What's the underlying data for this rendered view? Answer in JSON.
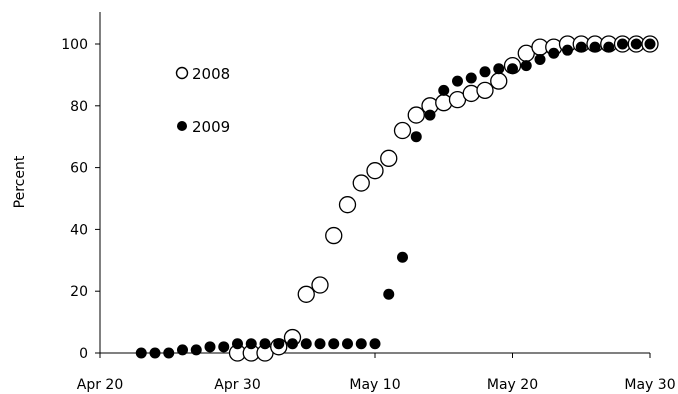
{
  "chart_data": {
    "type": "scatter",
    "title": "",
    "xlabel": "",
    "ylabel": "Percent",
    "x_ticks": [
      "Apr 20",
      "Apr 30",
      "May 10",
      "May 20",
      "May 30"
    ],
    "y_ticks": [
      "0",
      "20",
      "40",
      "60",
      "80",
      "100"
    ],
    "xlim": [
      "Apr 20",
      "May 30"
    ],
    "ylim": [
      0,
      100
    ],
    "grid": false,
    "legend_position": "top-left",
    "series": [
      {
        "name": "2008",
        "marker": "open-circle",
        "x": [
          "Apr 30",
          "May 1",
          "May 2",
          "May 3",
          "May 4",
          "May 5",
          "May 6",
          "May 7",
          "May 8",
          "May 9",
          "May 10",
          "May 11",
          "May 12",
          "May 13",
          "May 14",
          "May 15",
          "May 16",
          "May 17",
          "May 18",
          "May 19",
          "May 20",
          "May 21",
          "May 22",
          "May 23",
          "May 24",
          "May 25",
          "May 26",
          "May 27",
          "May 28",
          "May 29",
          "May 30"
        ],
        "y": [
          0,
          0,
          0,
          2,
          5,
          19,
          22,
          38,
          48,
          55,
          59,
          63,
          72,
          77,
          80,
          81,
          82,
          84,
          85,
          88,
          93,
          97,
          99,
          99,
          100,
          100,
          100,
          100,
          100,
          100,
          100
        ]
      },
      {
        "name": "2009",
        "marker": "filled-circle",
        "x": [
          "Apr 23",
          "Apr 24",
          "Apr 25",
          "Apr 26",
          "Apr 27",
          "Apr 28",
          "Apr 29",
          "Apr 30",
          "May 1",
          "May 2",
          "May 3",
          "May 4",
          "May 5",
          "May 6",
          "May 7",
          "May 8",
          "May 9",
          "May 10",
          "May 11",
          "May 12",
          "May 13",
          "May 14",
          "May 15",
          "May 16",
          "May 17",
          "May 18",
          "May 19",
          "May 20",
          "May 21",
          "May 22",
          "May 23",
          "May 24",
          "May 25",
          "May 26",
          "May 27",
          "May 28",
          "May 29",
          "May 30"
        ],
        "y": [
          0,
          0,
          0,
          1,
          1,
          2,
          2,
          3,
          3,
          3,
          3,
          3,
          3,
          3,
          3,
          3,
          3,
          3,
          19,
          31,
          70,
          77,
          85,
          88,
          89,
          91,
          92,
          92,
          93,
          95,
          97,
          98,
          99,
          99,
          99,
          100,
          100,
          100
        ]
      }
    ]
  }
}
